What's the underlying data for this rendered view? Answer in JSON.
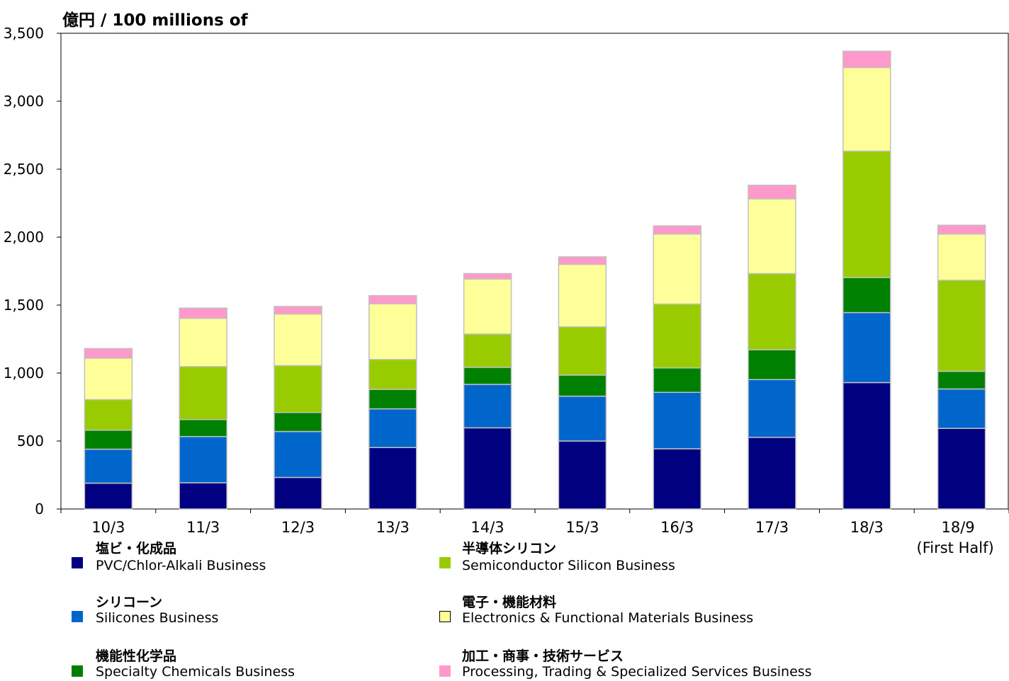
{
  "chart_data": {
    "type": "bar",
    "stacked": true,
    "unit_label": "億円 / 100 millions of",
    "categories": [
      "10/3",
      "11/3",
      "12/3",
      "13/3",
      "14/3",
      "15/3",
      "16/3",
      "17/3",
      "18/3",
      "18/9"
    ],
    "category_sublabels": [
      "",
      "",
      "",
      "",
      "",
      "",
      "",
      "",
      "",
      "(First Half)"
    ],
    "ylim": [
      0,
      3500
    ],
    "yticks": [
      0,
      500,
      1000,
      1500,
      2000,
      2500,
      3000,
      3500
    ],
    "ytick_labels": [
      "0",
      "500",
      "1,000",
      "1,500",
      "2,000",
      "2,500",
      "3,000",
      "3,500"
    ],
    "grid": false,
    "series": [
      {
        "name_jp": "塩ビ・化成品",
        "name": "PVC/Chlor-Alkali Business",
        "color": "#000080",
        "values": [
          190,
          193,
          232,
          452,
          597,
          500,
          443,
          527,
          930,
          593
        ]
      },
      {
        "name_jp": "シリコーン",
        "name": "Silicones Business",
        "color": "#0066CC",
        "values": [
          250,
          340,
          338,
          285,
          320,
          330,
          415,
          425,
          515,
          290
        ]
      },
      {
        "name_jp": "機能性化学品",
        "name": "Specialty Chemicals Business",
        "color": "#008000",
        "values": [
          140,
          125,
          140,
          143,
          125,
          155,
          180,
          220,
          258,
          130
        ]
      },
      {
        "name_jp": "半導体シリコン",
        "name": "Semiconductor Silicon Business",
        "color": "#99CC00",
        "values": [
          225,
          390,
          345,
          220,
          245,
          355,
          470,
          560,
          930,
          670
        ]
      },
      {
        "name_jp": "電子・機能材料",
        "name": "Electronics & Functional Materials Business",
        "color": "#FFFF99",
        "values": [
          305,
          355,
          380,
          410,
          405,
          460,
          515,
          550,
          615,
          340
        ]
      },
      {
        "name_jp": "加工・商事・技術サービス",
        "name": "Processing, Trading & Specialized Services Business",
        "color": "#FF99CC",
        "values": [
          70,
          75,
          55,
          60,
          40,
          55,
          60,
          100,
          120,
          65
        ]
      }
    ],
    "legend_placement": "bottom, two columns"
  },
  "legend_swatch_colors": {
    "swatch_border_default": "#000080",
    "swatch_border_yellow": "#000000"
  }
}
